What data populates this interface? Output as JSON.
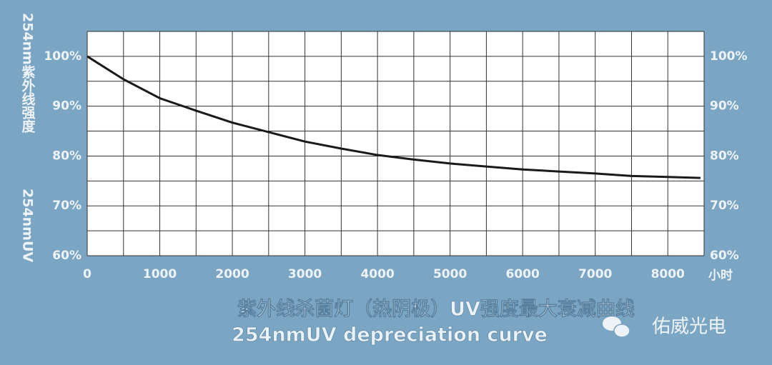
{
  "chart_data": {
    "type": "line",
    "title": "紫外线杀菌灯（热阴极）UV强度最大衰减曲线",
    "subtitle": "254nmUV depreciation curve",
    "y_label": "254nm紫外线强度",
    "y2_label": "254nmUV",
    "x_unit": "小时",
    "watermark": "佑威光电",
    "x": [
      0,
      500,
      1000,
      1500,
      2000,
      2500,
      3000,
      3500,
      4000,
      4500,
      5000,
      5500,
      6000,
      6500,
      7000,
      7500,
      8000,
      8450
    ],
    "values": [
      100,
      95.4,
      91.6,
      89.1,
      86.7,
      84.8,
      82.9,
      81.5,
      80.2,
      79.3,
      78.5,
      77.9,
      77.3,
      76.9,
      76.5,
      76.0,
      75.8,
      75.6
    ],
    "color": "#1a1a1a",
    "xlim": [
      0,
      8500
    ],
    "xticks": [
      0,
      1000,
      2000,
      3000,
      4000,
      5000,
      6000,
      7000,
      8000
    ],
    "ylim": [
      60,
      105
    ],
    "yticks": [
      {
        "value": 60,
        "label": "60%"
      },
      {
        "value": 70,
        "label": "70%"
      },
      {
        "value": 80,
        "label": "80%"
      },
      {
        "value": 90,
        "label": "90%"
      },
      {
        "value": 100,
        "label": "100%"
      }
    ],
    "y2lim": [
      60,
      105
    ],
    "y2ticks": [
      {
        "value": 60,
        "label": "60%"
      },
      {
        "value": 70,
        "label": "70%"
      },
      {
        "value": 80,
        "label": "80%"
      },
      {
        "value": 90,
        "label": "90%"
      },
      {
        "value": 100,
        "label": "100%"
      }
    ],
    "grid_x": [
      0,
      500,
      1000,
      1500,
      2000,
      2500,
      3000,
      3500,
      4000,
      4500,
      5000,
      5500,
      6000,
      6500,
      7000,
      7500,
      8000,
      8500
    ],
    "grid_y": [
      60,
      65,
      70,
      75,
      80,
      85,
      90,
      95,
      100,
      105
    ],
    "grid": true
  }
}
